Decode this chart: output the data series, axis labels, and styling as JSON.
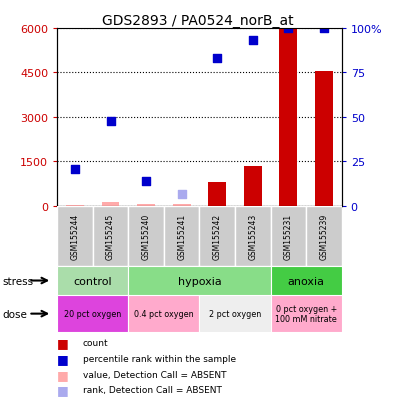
{
  "title": "GDS2893 / PA0524_norB_at",
  "samples": [
    "GSM155244",
    "GSM155245",
    "GSM155240",
    "GSM155241",
    "GSM155242",
    "GSM155243",
    "GSM155231",
    "GSM155239"
  ],
  "counts": [
    50,
    130,
    80,
    60,
    800,
    1350,
    6000,
    4550
  ],
  "percentile_ranks_pct": [
    21,
    48,
    14,
    7,
    83,
    93,
    100,
    100
  ],
  "count_absent": [
    true,
    true,
    true,
    true,
    false,
    false,
    false,
    false
  ],
  "rank_absent": [
    false,
    false,
    false,
    true,
    false,
    false,
    false,
    false
  ],
  "ylim_left": [
    0,
    6000
  ],
  "ylim_right": [
    0,
    100
  ],
  "yticks_left": [
    0,
    1500,
    3000,
    4500,
    6000
  ],
  "yticks_right": [
    0,
    25,
    50,
    75,
    100
  ],
  "ytick_labels_left": [
    "0",
    "1500",
    "3000",
    "4500",
    "6000"
  ],
  "ytick_labels_right": [
    "0",
    "25",
    "50",
    "75",
    "100%"
  ],
  "bar_color": "#cc0000",
  "bar_color_absent": "#ffaaaa",
  "dot_color": "#0000cc",
  "dot_color_absent": "#aaaaee",
  "ylabel_left_color": "#cc0000",
  "ylabel_right_color": "#0000cc",
  "sample_bg_color": "#cccccc",
  "stress_defs": [
    {
      "label": "control",
      "indices": [
        0,
        1
      ],
      "color": "#aaddaa"
    },
    {
      "label": "hypoxia",
      "indices": [
        2,
        3,
        4,
        5
      ],
      "color": "#88dd88"
    },
    {
      "label": "anoxia",
      "indices": [
        6,
        7
      ],
      "color": "#44cc44"
    }
  ],
  "dose_defs": [
    {
      "label": "20 pct oxygen",
      "indices": [
        0,
        1
      ],
      "color": "#dd44dd"
    },
    {
      "label": "0.4 pct oxygen",
      "indices": [
        2,
        3
      ],
      "color": "#ffaacc"
    },
    {
      "label": "2 pct oxygen",
      "indices": [
        4,
        5
      ],
      "color": "#eeeeee"
    },
    {
      "label": "0 pct oxygen +\n100 mM nitrate",
      "indices": [
        6,
        7
      ],
      "color": "#ffaacc"
    }
  ],
  "legend_items": [
    {
      "color": "#cc0000",
      "label": "count"
    },
    {
      "color": "#0000cc",
      "label": "percentile rank within the sample"
    },
    {
      "color": "#ffaaaa",
      "label": "value, Detection Call = ABSENT"
    },
    {
      "color": "#aaaaee",
      "label": "rank, Detection Call = ABSENT"
    }
  ]
}
